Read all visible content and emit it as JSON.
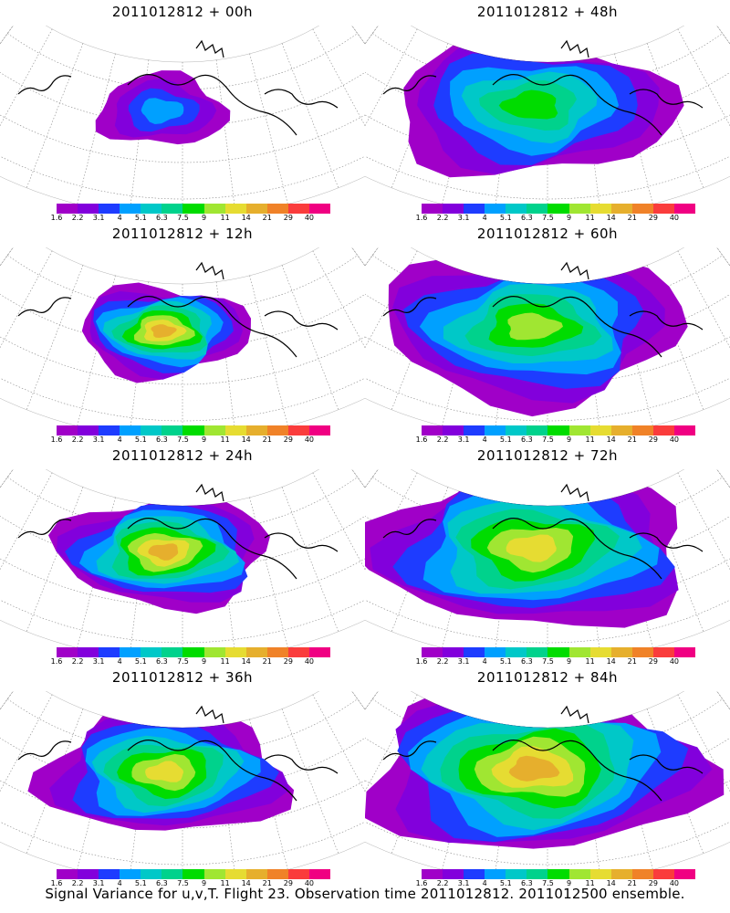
{
  "caption": "Signal Variance for u,v,T. Flight 23. Observation time 2011012812. 2011012500 ensemble.",
  "colorbar": {
    "labels": [
      "1.6",
      "2.2",
      "3.1",
      "4",
      "5.1",
      "6.3",
      "7.5",
      "9",
      "11",
      "14",
      "21",
      "29",
      "40"
    ],
    "colors": [
      "#a000c8",
      "#8200dc",
      "#1e3cff",
      "#00a0ff",
      "#00c8c8",
      "#00d28c",
      "#00dc00",
      "#a0e632",
      "#e6dc32",
      "#e6af2d",
      "#f08228",
      "#fa3c3c",
      "#f00082"
    ]
  },
  "panels": [
    {
      "title": "2011012812 + 00h",
      "extent": 0.2,
      "peak": 3
    },
    {
      "title": "2011012812 + 48h",
      "extent": 0.75,
      "peak": 6
    },
    {
      "title": "2011012812 + 12h",
      "extent": 0.35,
      "peak": 9
    },
    {
      "title": "2011012812 + 60h",
      "extent": 0.82,
      "peak": 7
    },
    {
      "title": "2011012812 + 24h",
      "extent": 0.5,
      "peak": 9
    },
    {
      "title": "2011012812 + 72h",
      "extent": 0.9,
      "peak": 8
    },
    {
      "title": "2011012812 + 36h",
      "extent": 0.62,
      "peak": 8
    },
    {
      "title": "2011012812 + 84h",
      "extent": 0.95,
      "peak": 9
    }
  ]
}
